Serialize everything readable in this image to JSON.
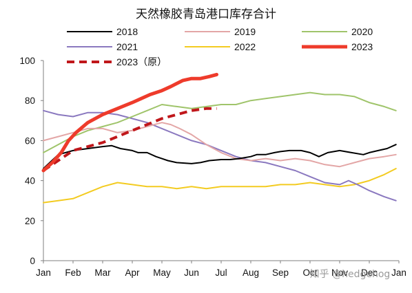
{
  "chart_data": {
    "type": "line",
    "title": "天然橡胶青岛港口库存合计",
    "xlabel": "",
    "ylabel": "",
    "ylim": [
      0,
      100
    ],
    "yticks": [
      0,
      20,
      40,
      60,
      80,
      100
    ],
    "x_tick_labels": [
      "Jan",
      "Feb",
      "Mar",
      "Apr",
      "May",
      "Jun",
      "Jul",
      "Aug",
      "Sep",
      "Oct",
      "Nov",
      "Dec",
      "Jan"
    ],
    "x_domain_note": "x values are months from Jan (0 = Jan, 12 = next Jan)",
    "legend_position": "top",
    "grid": false,
    "watermark": "知乎 @hedgehog",
    "series": [
      {
        "name": "2018",
        "color": "#000000",
        "style": "solid",
        "x": [
          0,
          0.5,
          1,
          1.5,
          2,
          2.3,
          2.6,
          3,
          3.2,
          3.5,
          3.8,
          4,
          4.2,
          4.5,
          5,
          5.3,
          5.6,
          6,
          6.3,
          6.6,
          7,
          7.2,
          7.5,
          7.8,
          8,
          8.3,
          8.7,
          9,
          9.3,
          9.6,
          10,
          10.4,
          10.8,
          11,
          11.3,
          11.6,
          11.9
        ],
        "values": [
          46,
          53,
          55,
          56,
          57,
          57.5,
          56,
          55,
          54,
          54,
          52,
          51,
          50,
          49,
          48.5,
          49,
          50,
          50.5,
          50.5,
          51,
          52,
          53,
          53,
          54,
          54.5,
          55,
          55,
          54,
          52,
          54,
          55,
          54,
          53,
          54,
          55,
          56,
          58
        ]
      },
      {
        "name": "2019",
        "color": "#e3a6a6",
        "style": "solid",
        "x": [
          0,
          0.5,
          1,
          1.5,
          2,
          2.5,
          3,
          3.5,
          4,
          4.3,
          4.6,
          5,
          5.5,
          6,
          6.5,
          7,
          7.5,
          8,
          8.5,
          9,
          9.5,
          10,
          10.5,
          11,
          11.5,
          11.9
        ],
        "values": [
          60,
          62,
          64,
          66,
          66,
          64,
          65,
          67,
          69,
          68,
          66,
          63,
          58,
          54,
          51,
          50,
          51,
          50,
          51,
          50,
          48,
          47,
          49,
          51,
          52,
          53
        ]
      },
      {
        "name": "2020",
        "color": "#9fc46a",
        "style": "solid",
        "x": [
          0,
          0.5,
          1,
          1.5,
          2,
          2.5,
          3,
          3.5,
          4,
          4.5,
          5,
          5.5,
          6,
          6.5,
          7,
          7.5,
          8,
          8.5,
          9,
          9.5,
          10,
          10.5,
          11,
          11.5,
          11.9
        ],
        "values": [
          54,
          58,
          62,
          65,
          67,
          69,
          72,
          75,
          78,
          77,
          76,
          77,
          78,
          78,
          80,
          81,
          82,
          83,
          84,
          83,
          83,
          82,
          79,
          77,
          75
        ]
      },
      {
        "name": "2021",
        "color": "#8a78bf",
        "style": "solid",
        "x": [
          0,
          0.5,
          1,
          1.5,
          2,
          2.5,
          3,
          3.5,
          4,
          4.5,
          5,
          5.5,
          6,
          6.5,
          7,
          7.5,
          8,
          8.5,
          9,
          9.5,
          10,
          10.3,
          10.6,
          11,
          11.5,
          11.9
        ],
        "values": [
          75,
          73,
          72,
          74,
          74,
          73,
          71,
          69,
          66,
          63,
          60,
          58,
          55,
          52,
          50,
          49,
          47,
          45,
          42,
          39,
          38,
          40,
          38,
          35,
          32,
          30
        ]
      },
      {
        "name": "2022",
        "color": "#f3cb20",
        "style": "solid",
        "x": [
          0,
          0.5,
          1,
          1.5,
          2,
          2.5,
          3,
          3.5,
          4,
          4.5,
          5,
          5.5,
          6,
          6.5,
          7,
          7.5,
          8,
          8.5,
          9,
          9.5,
          10,
          10.5,
          11,
          11.5,
          11.9
        ],
        "values": [
          29,
          30,
          31,
          34,
          37,
          39,
          38,
          37,
          37,
          36,
          37,
          36,
          37,
          37,
          37,
          37,
          38,
          38,
          39,
          38,
          37,
          38,
          40,
          43,
          46
        ]
      },
      {
        "name": "2023",
        "color": "#ee3b2b",
        "style": "solid-thick",
        "x": [
          0,
          0.3,
          0.6,
          0.85,
          1.1,
          1.5,
          2,
          2.5,
          3,
          3.3,
          3.6,
          4,
          4.3,
          4.7,
          5,
          5.3,
          5.6,
          5.85
        ],
        "values": [
          45,
          49,
          54,
          60,
          64,
          69,
          73,
          76,
          79,
          81,
          83,
          85,
          87,
          90,
          91,
          91,
          92,
          93
        ]
      },
      {
        "name": "2023（原）",
        "color": "#c0171b",
        "style": "dashed",
        "x": [
          0,
          0.5,
          1,
          1.5,
          2,
          2.5,
          3,
          3.5,
          4,
          4.5,
          5,
          5.5,
          5.85
        ],
        "values": [
          45,
          50,
          55,
          57,
          59,
          62,
          65,
          68,
          71,
          73,
          75,
          76,
          76
        ]
      }
    ]
  }
}
